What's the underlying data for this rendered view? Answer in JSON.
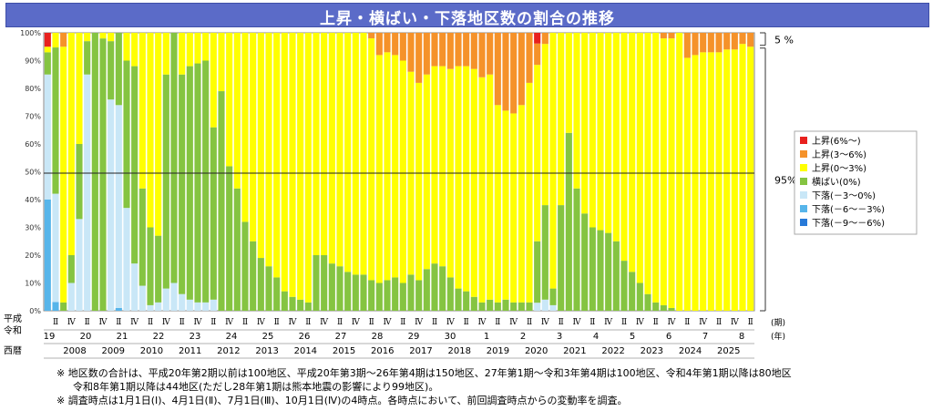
{
  "chart_data": {
    "type": "bar",
    "stacked": true,
    "percent": true,
    "title": "上昇・横ばい・下落地区数の割合の推移",
    "ylim": [
      0,
      100
    ],
    "yticks": [
      "0%",
      "10%",
      "20%",
      "30%",
      "40%",
      "50%",
      "60%",
      "70%",
      "80%",
      "90%",
      "100%"
    ],
    "reference_line": 49.5,
    "row_labels": {
      "heisei": "平成",
      "reiwa": "令和",
      "seireki": "西暦",
      "period_unit": "(期)",
      "era_unit": "(年)"
    },
    "quarter_marks": [
      "Ⅱ",
      "Ⅳ"
    ],
    "era_years": [
      "19",
      "20",
      "21",
      "22",
      "23",
      "24",
      "25",
      "26",
      "27",
      "28",
      "29",
      "30",
      "1",
      "2",
      "3",
      "4",
      "5",
      "6",
      "7",
      "8"
    ],
    "western_years": [
      "2008",
      "2009",
      "2010",
      "2011",
      "2012",
      "2013",
      "2014",
      "2015",
      "2016",
      "2017",
      "2018",
      "2019",
      "2020",
      "2021",
      "2022",
      "2023",
      "2024",
      "2025"
    ],
    "legend_position": "right",
    "series": [
      {
        "name": "上昇(6%～)",
        "color": "#e8211e"
      },
      {
        "name": "上昇(3～6%)",
        "color": "#f5922a"
      },
      {
        "name": "上昇(0～3%)",
        "color": "#ffff00"
      },
      {
        "name": "横ばい(0%)",
        "color": "#85c441"
      },
      {
        "name": "下落(－3～0%)",
        "color": "#c9e7f7"
      },
      {
        "name": "下落(－6～－3%)",
        "color": "#57b5ea"
      },
      {
        "name": "下落(－9～－6%)",
        "color": "#2779d8"
      }
    ],
    "extra_segments_colors": [
      "#1d2a8c"
    ],
    "bars": [
      [
        5,
        0,
        0,
        40,
        45,
        8,
        2,
        0
      ],
      [
        0,
        0,
        0,
        3,
        37,
        50,
        5,
        0
      ],
      [
        0,
        0,
        0,
        0,
        0,
        3,
        92,
        5
      ],
      [
        0,
        0,
        0,
        0,
        10,
        10,
        80,
        0
      ],
      [
        0,
        0,
        0,
        0,
        33,
        27,
        40,
        0
      ],
      [
        0,
        0,
        0,
        0,
        85,
        12,
        3,
        0
      ],
      [
        0,
        0,
        0,
        0,
        0,
        100,
        0,
        0
      ],
      [
        0,
        0,
        0,
        0,
        0,
        97,
        2,
        0
      ],
      [
        0,
        0,
        0,
        0,
        76,
        21,
        3,
        0
      ],
      [
        0,
        0,
        0,
        1,
        73,
        26,
        0,
        0
      ],
      [
        0,
        0,
        0,
        0,
        37,
        53,
        10,
        0
      ],
      [
        0,
        0,
        0,
        0,
        17,
        71,
        12,
        0
      ],
      [
        0,
        0,
        0,
        0,
        9,
        35,
        56,
        0
      ],
      [
        0,
        0,
        0,
        0,
        2,
        28,
        70,
        0
      ],
      [
        0,
        0,
        0,
        0,
        3,
        24,
        73,
        0
      ],
      [
        0,
        0,
        0,
        0,
        8,
        77,
        15,
        0
      ],
      [
        0,
        0,
        0,
        0,
        10,
        90,
        0,
        0
      ],
      [
        0,
        0,
        0,
        0,
        6,
        79,
        15,
        0
      ],
      [
        0,
        0,
        0,
        0,
        4,
        84,
        12,
        0
      ],
      [
        0,
        0,
        0,
        0,
        3,
        86,
        11,
        0
      ],
      [
        0,
        0,
        0,
        0,
        3,
        87,
        10,
        0
      ],
      [
        0,
        0,
        0,
        0,
        4,
        62,
        34,
        0
      ],
      [
        0,
        0,
        0,
        0,
        0,
        79,
        21,
        0
      ],
      [
        0,
        0,
        0,
        0,
        0,
        52,
        48,
        0
      ],
      [
        0,
        0,
        0,
        0,
        0,
        44,
        56,
        0
      ],
      [
        0,
        0,
        0,
        0,
        0,
        32,
        68,
        0
      ],
      [
        0,
        0,
        0,
        0,
        0,
        25,
        75,
        0
      ],
      [
        0,
        0,
        0,
        0,
        0,
        19,
        81,
        0
      ],
      [
        0,
        0,
        0,
        0,
        0,
        16,
        84,
        0
      ],
      [
        0,
        0,
        0,
        0,
        0,
        12,
        88,
        0
      ],
      [
        0,
        0,
        0,
        0,
        0,
        7,
        93,
        0
      ],
      [
        0,
        0,
        0,
        0,
        0,
        5,
        95,
        0
      ],
      [
        0,
        0,
        0,
        0,
        0,
        4,
        96,
        0
      ],
      [
        0,
        0,
        0,
        0,
        0,
        3,
        97,
        0
      ],
      [
        0,
        0,
        0,
        0,
        0,
        20,
        80,
        0
      ],
      [
        0,
        0,
        0,
        0,
        0,
        20,
        80,
        0
      ],
      [
        0,
        0,
        0,
        0,
        0,
        17,
        83,
        0
      ],
      [
        0,
        0,
        0,
        0,
        0,
        16,
        84,
        0
      ],
      [
        0,
        0,
        0,
        0,
        0,
        14,
        86,
        0
      ],
      [
        0,
        0,
        0,
        0,
        0,
        13,
        87,
        0
      ],
      [
        0,
        0,
        0,
        0,
        0,
        13,
        87,
        0
      ],
      [
        0,
        0,
        0,
        0,
        0,
        11,
        87,
        2
      ],
      [
        0,
        0,
        0,
        0,
        0,
        10,
        82,
        8
      ],
      [
        0,
        0,
        0,
        0,
        0,
        11,
        82,
        7
      ],
      [
        0,
        0,
        0,
        0,
        0,
        12,
        80,
        8
      ],
      [
        0,
        0,
        0,
        0,
        0,
        10,
        80,
        10
      ],
      [
        0,
        0,
        0,
        0,
        0,
        13,
        73,
        14
      ],
      [
        0,
        0,
        0,
        0,
        0,
        11,
        71,
        18
      ],
      [
        0,
        0,
        0,
        0,
        0,
        15,
        70,
        15
      ],
      [
        0,
        0,
        0,
        0,
        0,
        17,
        71,
        12
      ],
      [
        0,
        0,
        0,
        0,
        0,
        16,
        72,
        12
      ],
      [
        0,
        0,
        0,
        0,
        0,
        12,
        75,
        13
      ],
      [
        0,
        0,
        0,
        0,
        0,
        8,
        80,
        12
      ],
      [
        0,
        0,
        0,
        0,
        0,
        7,
        81,
        12
      ],
      [
        0,
        0,
        0,
        0,
        0,
        5,
        82,
        13
      ],
      [
        0,
        0,
        0,
        0,
        0,
        3,
        81,
        16
      ],
      [
        0,
        0,
        0,
        0,
        0,
        4,
        81,
        15
      ],
      [
        0,
        0,
        0,
        0,
        0,
        3,
        71,
        26
      ],
      [
        0,
        0,
        0,
        0,
        0,
        4,
        68,
        28
      ],
      [
        0,
        0,
        0,
        0,
        0,
        3,
        68,
        29
      ],
      [
        0,
        0,
        0,
        0,
        0,
        3,
        71,
        26
      ],
      [
        0,
        0,
        0,
        0,
        0,
        3,
        79,
        18
      ],
      [
        4,
        0,
        0,
        0,
        3,
        23,
        66,
        8
      ],
      [
        0,
        0,
        0,
        0,
        4,
        34,
        58,
        4
      ],
      [
        0,
        0,
        0,
        0,
        2,
        6,
        92,
        0
      ],
      [
        0,
        0,
        0,
        0,
        0,
        38,
        62,
        0
      ],
      [
        0,
        0,
        0,
        0,
        0,
        64,
        36,
        0
      ],
      [
        0,
        0,
        0,
        0,
        0,
        44,
        56,
        0
      ],
      [
        0,
        0,
        0,
        0,
        0,
        35,
        65,
        0
      ],
      [
        0,
        0,
        0,
        0,
        0,
        30,
        70,
        0
      ],
      [
        0,
        0,
        0,
        0,
        0,
        29,
        71,
        0
      ],
      [
        0,
        0,
        0,
        0,
        0,
        28,
        72,
        0
      ],
      [
        0,
        0,
        0,
        0,
        0,
        25,
        75,
        0
      ],
      [
        0,
        0,
        0,
        0,
        0,
        18,
        82,
        0
      ],
      [
        0,
        0,
        0,
        0,
        0,
        14,
        86,
        0
      ],
      [
        0,
        0,
        0,
        0,
        0,
        10,
        90,
        0
      ],
      [
        0,
        0,
        0,
        0,
        0,
        6,
        94,
        0
      ],
      [
        0,
        0,
        0,
        0,
        0,
        3,
        97,
        0
      ],
      [
        0,
        0,
        0,
        0,
        0,
        2,
        96,
        2
      ],
      [
        0,
        0,
        0,
        0,
        0,
        1,
        97,
        2
      ],
      [
        0,
        0,
        0,
        0,
        0,
        0,
        100,
        0
      ],
      [
        0,
        0,
        0,
        0,
        0,
        0,
        91,
        9
      ],
      [
        0,
        0,
        0,
        0,
        0,
        0,
        92,
        8
      ],
      [
        0,
        0,
        0,
        0,
        0,
        0,
        93,
        7
      ],
      [
        0,
        0,
        0,
        0,
        0,
        0,
        93,
        7
      ],
      [
        0,
        0,
        0,
        0,
        0,
        0,
        93,
        7
      ],
      [
        0,
        0,
        0,
        0,
        0,
        0,
        94,
        6
      ],
      [
        0,
        0,
        0,
        0,
        0,
        0,
        94,
        6
      ],
      [
        0,
        0,
        0,
        0,
        0,
        0,
        96,
        4
      ],
      [
        0,
        0,
        0,
        0,
        0,
        0,
        95,
        5
      ]
    ],
    "bracket_labels": [
      "5 %",
      "95%"
    ]
  },
  "notes": {
    "note1": "※ 地区数の合計は、平成20年第2期以前は100地区、平成20年第3期～26年第4期は150地区、27年第1期～令和3年第4期は100地区、令和4年第1期以降は80地区",
    "note1b": "令和8年第1期以降は44地区(ただし28年第1期は熊本地震の影響により99地区)。",
    "note2": "※ 調査時点は1月1日(Ⅰ)、4月1日(Ⅱ)、7月1日(Ⅲ)、10月1日(Ⅳ)の4時点。各時点において、前回調査時点からの変動率を調査。"
  }
}
